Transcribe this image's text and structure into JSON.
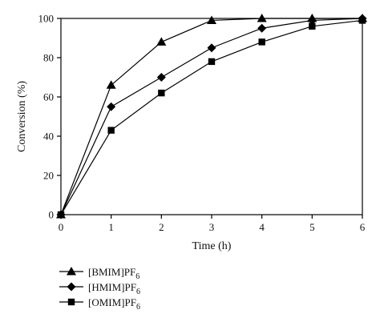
{
  "chart_data": {
    "type": "line",
    "title": "",
    "xlabel": "Time (h)",
    "ylabel": "Conversion (%)",
    "x": [
      0,
      1,
      2,
      3,
      4,
      5,
      6
    ],
    "xlim": [
      0,
      6
    ],
    "ylim": [
      0,
      100
    ],
    "xticks": [
      "0",
      "1",
      "2",
      "3",
      "4",
      "5",
      "6"
    ],
    "yticks": [
      "0",
      "20",
      "40",
      "60",
      "80",
      "100"
    ],
    "grid": false,
    "legend_position": "bottom-left",
    "line_color": "#000000",
    "series": [
      {
        "name": "[BMIM]PF",
        "name_sub": "6",
        "marker": "triangle",
        "values": [
          0,
          66,
          88,
          99,
          100,
          100,
          100
        ]
      },
      {
        "name": "[HMIM]PF",
        "name_sub": "6",
        "marker": "diamond",
        "values": [
          0,
          55,
          70,
          85,
          95,
          99,
          100
        ]
      },
      {
        "name": "[OMIM]PF",
        "name_sub": "6",
        "marker": "square",
        "values": [
          0,
          43,
          62,
          78,
          88,
          96,
          99
        ]
      }
    ]
  }
}
